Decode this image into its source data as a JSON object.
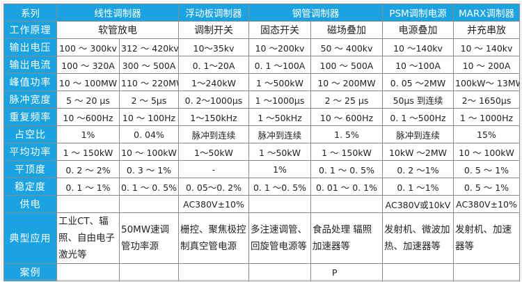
{
  "header": {
    "label": "系列",
    "groups": [
      {
        "label": "线性调制器",
        "span": 2
      },
      {
        "label": "浮动板调制器",
        "span": 1
      },
      {
        "label": "钢管调制器",
        "span": 2
      },
      {
        "label": "PSM调制电源",
        "span": 1
      },
      {
        "label": "MARX调制器",
        "span": 1
      }
    ]
  },
  "principle": {
    "label": "工作原理",
    "cells": [
      {
        "text": "软管放电",
        "span": 2
      },
      {
        "text": "调制开关",
        "span": 1
      },
      {
        "text": "固态开关",
        "span": 1
      },
      {
        "text": "磁场叠加",
        "span": 1
      },
      {
        "text": "电源叠加",
        "span": 1
      },
      {
        "text": "并充串放",
        "span": 1
      }
    ]
  },
  "rows": [
    {
      "label": "输出电压",
      "cells": [
        "100 ～ 300kv",
        "312 ～ 420kv",
        "10～35kv",
        "10 ～200kv",
        "50 ～ 400kv",
        "10 ～140kv",
        "10 ～ 140kv"
      ]
    },
    {
      "label": "输出电流",
      "cells": [
        "100 ～ 320A",
        "300 ～ 500A",
        "0. 1～20A",
        "0. 1 ～100A",
        "100 ～ 500A",
        "10 ～100A",
        "10 ～ 200A"
      ]
    },
    {
      "label": "峰值功率",
      "cells": [
        "10 ～ 100MW",
        "110 ～ 220MW",
        "1～240kW",
        "1 ～500kW",
        "10 ～ 200MW",
        "0. 05 ～2MW",
        "100kW～ 13MW"
      ]
    },
    {
      "label": "脉冲宽度",
      "cells": [
        "5 ～ 20 μs",
        "2 ～ 5μs",
        "0. 2～1000μs",
        "1 ～1000μs",
        "2 ～ 25 μs",
        "50μs 到连续",
        "2～ 1650μs"
      ]
    },
    {
      "label": "重复频率",
      "cells": [
        "10 ～600Hz",
        "10 ～ 100Hz",
        "1～150kHz",
        "1 ～50kHz",
        "10 ～ 600Hz",
        "0. 1 ～500Hz",
        "1 ～ 1000Hz"
      ]
    },
    {
      "label": "占空比",
      "cells": [
        "1%",
        "0. 04%",
        "脉冲到连续",
        "脉冲到连续",
        "1. 5%",
        "脉冲到连续",
        "15%"
      ]
    },
    {
      "label": "平均功率",
      "cells": [
        "1 ～ 150kW",
        "10 ～ 100kW",
        "1～50kW",
        "1 ～50kW",
        "1 ～ 150kW",
        "10kW ～2MW",
        "10 ～ 100kW"
      ]
    },
    {
      "label": "平顶度",
      "cells": [
        "0. 2 ～ 2%",
        "0. 3 ～ 1%",
        "-",
        "1%",
        "0. 1 ～ 0. 5%",
        "0. 2 ～1%",
        "0. 5 ～ 1%"
      ]
    },
    {
      "label": "稳定度",
      "cells": [
        "0. 1 ～ 1%",
        "0. 1 ～ 0. 5%",
        "0. 05～0. 2%",
        "0. 1 ～0. 5%",
        "0. 01 ～ 0. 1%",
        "0. 1 ～1%",
        "0. 5 ～ 1%"
      ]
    },
    {
      "label": "供电",
      "cells": [
        "",
        "",
        "AC380V±10%",
        "",
        "",
        "AC380V或10kV",
        "AC380V±10%"
      ]
    }
  ],
  "applications": {
    "label": "典型应用",
    "cells": [
      "工业CT、辐照、自由电子激光等",
      "50MW速调管功率源",
      "栅控、聚焦极控制真空管电源",
      "多注速调管、回旋管电源等",
      "食品处理 辐照加速器等",
      "发射机、微波加热、加速器等",
      "发射机、加速器等"
    ]
  },
  "cases": {
    "label": "案例",
    "cells": [
      "",
      "",
      "",
      "",
      "P",
      "",
      ""
    ]
  },
  "colors": {
    "header_bg": "#1aa3e0",
    "header_text": "#ffffff",
    "border": "#8a8a8a"
  }
}
